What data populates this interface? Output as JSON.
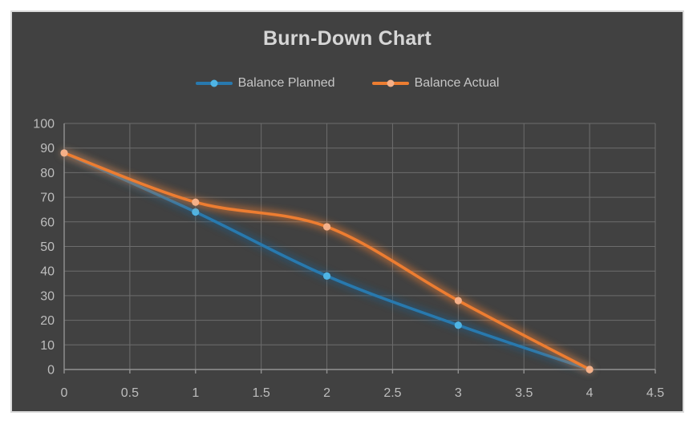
{
  "theme": {
    "page_bg": "#ffffff",
    "chart_bg": "#414141",
    "chart_border": "#dadada",
    "title_color": "#d6d6d6",
    "legend_text_color": "#c6c6c6",
    "tick_label_color": "#bdbdbd",
    "gridline_color": "#6d6d6d",
    "axis_line_color": "#929292"
  },
  "chart_data": {
    "type": "line",
    "title": "Burn-Down Chart",
    "x": [
      0,
      1,
      2,
      3,
      4
    ],
    "series": [
      {
        "name": "Balance Planned",
        "values": [
          88,
          64,
          38,
          18,
          0
        ],
        "line_color": "#2879ae",
        "marker_color": "#4fb4e4",
        "glow_color": "#1c5d88"
      },
      {
        "name": "Balance Actual",
        "values": [
          88,
          68,
          58,
          28,
          0
        ],
        "line_color": "#ed7d31",
        "marker_color": "#f5b088",
        "glow_color": "#ed7d31"
      }
    ],
    "xlabel": "",
    "ylabel": "",
    "xlim": [
      0,
      4.5
    ],
    "ylim": [
      0,
      100
    ],
    "x_tick_values": [
      0,
      0.5,
      1,
      1.5,
      2,
      2.5,
      3,
      3.5,
      4,
      4.5
    ],
    "x_tick_labels": [
      "0",
      "0.5",
      "1",
      "1.5",
      "2",
      "2.5",
      "3",
      "3.5",
      "4",
      "4.5"
    ],
    "y_tick_values": [
      0,
      10,
      20,
      30,
      40,
      50,
      60,
      70,
      80,
      90,
      100
    ],
    "y_tick_labels": [
      "0",
      "10",
      "20",
      "30",
      "40",
      "50",
      "60",
      "70",
      "80",
      "90",
      "100"
    ],
    "grid": true,
    "smooth_lines": true,
    "legend_position": "top"
  }
}
